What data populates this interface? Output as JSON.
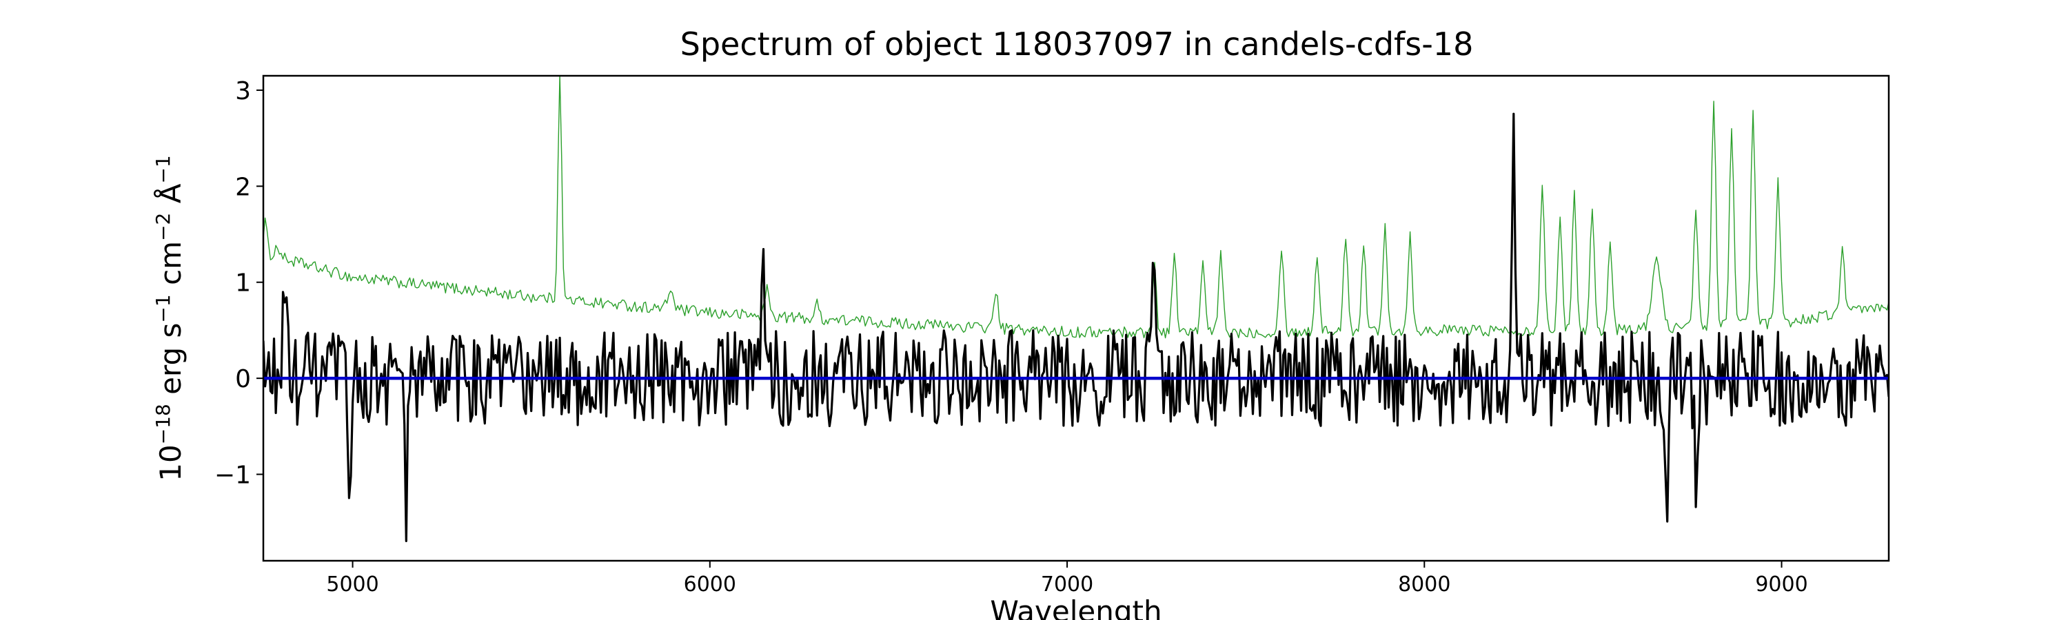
{
  "chart_data": {
    "type": "line",
    "title": "Spectrum of object 118037097 in candels-cdfs-18",
    "xlabel": "Wavelength",
    "ylabel": {
      "base": "10",
      "exp1": "−18",
      "mid1": " erg s",
      "exp2": "−1",
      "mid2": " cm",
      "exp3": "−2",
      "mid3": " Å",
      "exp4": "−1"
    },
    "xlim": [
      4750,
      9300
    ],
    "ylim": [
      -1.9,
      3.15
    ],
    "x_ticks": [
      5000,
      6000,
      7000,
      8000,
      9000
    ],
    "x_tick_labels": [
      "5000",
      "6000",
      "7000",
      "8000",
      "9000"
    ],
    "y_ticks": [
      -1,
      0,
      1,
      2,
      3
    ],
    "y_tick_labels": [
      "−1",
      "0",
      "1",
      "2",
      "3"
    ],
    "grid": false,
    "legend": "none",
    "series": [
      {
        "color": "#2ca02c",
        "line_width": "thin",
        "continuum": [
          [
            4750,
            1.3
          ],
          [
            5000,
            1.05
          ],
          [
            5500,
            0.85
          ],
          [
            6000,
            0.68
          ],
          [
            6500,
            0.58
          ],
          [
            7000,
            0.48
          ],
          [
            7500,
            0.48
          ],
          [
            8000,
            0.5
          ],
          [
            8500,
            0.5
          ],
          [
            9000,
            0.58
          ],
          [
            9300,
            0.75
          ]
        ],
        "noise_amplitude": 0.06,
        "features": [
          [
            4755,
            0.35,
            5
          ],
          [
            4790,
            0.1,
            8
          ],
          [
            5580,
            2.4,
            5
          ],
          [
            5890,
            0.2,
            8
          ],
          [
            6160,
            0.3,
            6
          ],
          [
            6300,
            0.15,
            6
          ],
          [
            6800,
            0.4,
            6
          ],
          [
            7245,
            0.7,
            5
          ],
          [
            7300,
            0.8,
            6
          ],
          [
            7380,
            0.7,
            6
          ],
          [
            7430,
            0.8,
            6
          ],
          [
            7600,
            0.9,
            6
          ],
          [
            7700,
            0.8,
            6
          ],
          [
            7780,
            1.0,
            6
          ],
          [
            7830,
            0.9,
            6
          ],
          [
            7890,
            1.1,
            6
          ],
          [
            7960,
            1.0,
            6
          ],
          [
            8330,
            1.55,
            6
          ],
          [
            8380,
            1.2,
            6
          ],
          [
            8420,
            1.4,
            6
          ],
          [
            8470,
            1.3,
            6
          ],
          [
            8520,
            0.9,
            6
          ],
          [
            8650,
            0.75,
            12
          ],
          [
            8760,
            1.2,
            6
          ],
          [
            8810,
            2.35,
            6
          ],
          [
            8860,
            2.1,
            6
          ],
          [
            8920,
            2.2,
            6
          ],
          [
            8990,
            1.5,
            6
          ],
          [
            9170,
            0.7,
            6
          ]
        ]
      },
      {
        "color": "#000000",
        "line_width": "thick",
        "continuum": [
          [
            4750,
            0.0
          ],
          [
            9300,
            0.0
          ]
        ],
        "noise_amplitude": 0.5,
        "features": [
          [
            4810,
            1.2,
            4
          ],
          [
            4990,
            -1.4,
            4
          ],
          [
            5150,
            -1.5,
            4
          ],
          [
            6150,
            1.3,
            4
          ],
          [
            7240,
            1.4,
            4
          ],
          [
            8250,
            2.9,
            4
          ],
          [
            8680,
            -1.4,
            4
          ],
          [
            8760,
            -1.4,
            4
          ]
        ]
      },
      {
        "color": "#0000cc",
        "line_width": "medium",
        "continuum": [
          [
            4750,
            0.0
          ],
          [
            9300,
            0.0
          ]
        ],
        "noise_amplitude": 0,
        "features": []
      }
    ]
  }
}
